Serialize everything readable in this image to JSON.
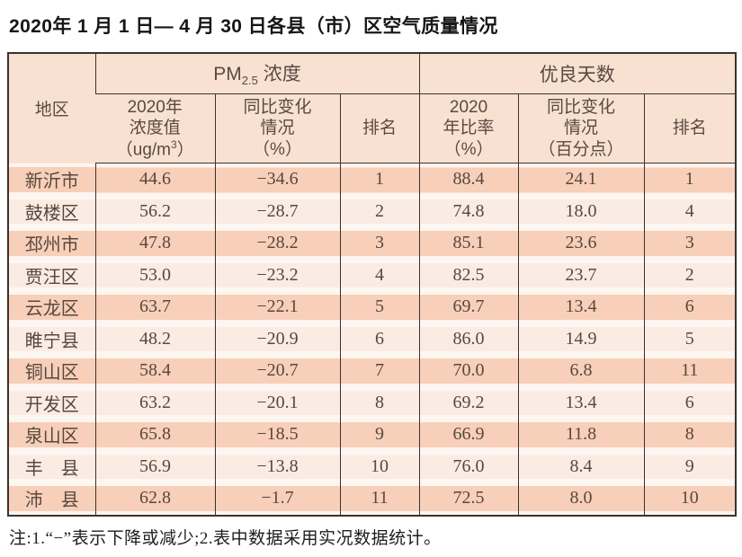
{
  "title": "2020年 1 月 1 日— 4 月 30 日各县（市）区空气质量情况",
  "footnote": "注:1.“−”表示下降或减少;2.表中数据采用实况数据统计。",
  "colors": {
    "header_bg": "#f9e1d1",
    "row_band_odd": "#f8cfb9",
    "row_band_even": "#fbece3",
    "row_base": "#fdf5ef",
    "border": "#3a332e",
    "text": "#564840"
  },
  "header": {
    "corner": "地区",
    "pm_group": {
      "pm": "PM",
      "sub": "2.5",
      "rest": " 浓度"
    },
    "good_group": "优良天数",
    "pm_value": {
      "l1": "2020年",
      "l2": "浓度值",
      "unit_pre": "（ug/m",
      "unit_sup": "3",
      "unit_post": "）"
    },
    "pm_change": {
      "l1": "同比变化",
      "l2": "情况",
      "l3": "（%）"
    },
    "pm_rank": "排名",
    "good_ratio": {
      "l1": "2020",
      "l2": "年比率",
      "l3": "（%）"
    },
    "good_change": {
      "l1": "同比变化",
      "l2": "情况",
      "l3": "（百分点）"
    },
    "good_rank": "排名"
  },
  "chart_data": {
    "type": "table",
    "title": "2020年1月1日—4月30日各县（市）区空气质量情况",
    "column_groups": [
      {
        "label": "PM2.5 浓度",
        "span": 3
      },
      {
        "label": "优良天数",
        "span": 3
      }
    ],
    "columns": [
      "地区",
      "2020年浓度值（ug/m3）",
      "同比变化情况（%）",
      "排名",
      "2020年比率（%）",
      "同比变化情况（百分点）",
      "排名"
    ],
    "rows": [
      {
        "region": "新沂市",
        "pm_value": "44.6",
        "pm_change": "−34.6",
        "pm_rank": "1",
        "good_ratio": "88.4",
        "good_change": "24.1",
        "good_rank": "1"
      },
      {
        "region": "鼓楼区",
        "pm_value": "56.2",
        "pm_change": "−28.7",
        "pm_rank": "2",
        "good_ratio": "74.8",
        "good_change": "18.0",
        "good_rank": "4"
      },
      {
        "region": "邳州市",
        "pm_value": "47.8",
        "pm_change": "−28.2",
        "pm_rank": "3",
        "good_ratio": "85.1",
        "good_change": "23.6",
        "good_rank": "3"
      },
      {
        "region": "贾汪区",
        "pm_value": "53.0",
        "pm_change": "−23.2",
        "pm_rank": "4",
        "good_ratio": "82.5",
        "good_change": "23.7",
        "good_rank": "2"
      },
      {
        "region": "云龙区",
        "pm_value": "63.7",
        "pm_change": "−22.1",
        "pm_rank": "5",
        "good_ratio": "69.7",
        "good_change": "13.4",
        "good_rank": "6"
      },
      {
        "region": "睢宁县",
        "pm_value": "48.2",
        "pm_change": "−20.9",
        "pm_rank": "6",
        "good_ratio": "86.0",
        "good_change": "14.9",
        "good_rank": "5"
      },
      {
        "region": "铜山区",
        "pm_value": "58.4",
        "pm_change": "−20.7",
        "pm_rank": "7",
        "good_ratio": "70.0",
        "good_change": "6.8",
        "good_rank": "11"
      },
      {
        "region": "开发区",
        "pm_value": "63.2",
        "pm_change": "−20.1",
        "pm_rank": "8",
        "good_ratio": "69.2",
        "good_change": "13.4",
        "good_rank": "6"
      },
      {
        "region": "泉山区",
        "pm_value": "65.8",
        "pm_change": "−18.5",
        "pm_rank": "9",
        "good_ratio": "66.9",
        "good_change": "11.8",
        "good_rank": "8"
      },
      {
        "region": "丰　县",
        "pm_value": "56.9",
        "pm_change": "−13.8",
        "pm_rank": "10",
        "good_ratio": "76.0",
        "good_change": "8.4",
        "good_rank": "9"
      },
      {
        "region": "沛　县",
        "pm_value": "62.8",
        "pm_change": "−1.7",
        "pm_rank": "11",
        "good_ratio": "72.5",
        "good_change": "8.0",
        "good_rank": "10"
      }
    ]
  }
}
